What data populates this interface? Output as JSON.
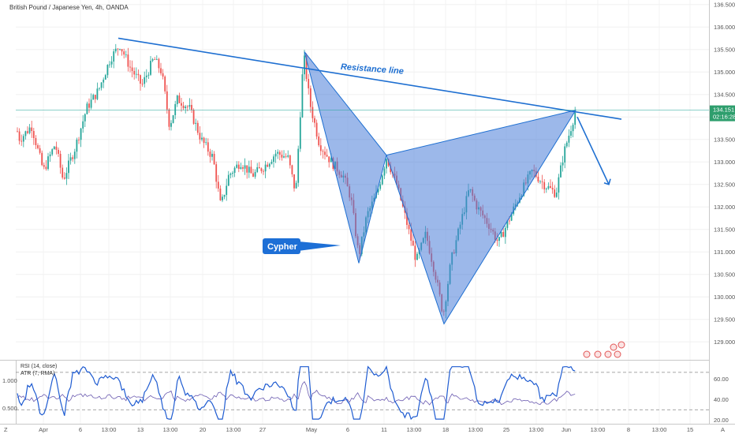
{
  "header": {
    "symbol_title": "British Pound / Japanese Yen, 4h, OANDA"
  },
  "colors": {
    "up": "#26a69a",
    "down": "#ef5350",
    "trendline": "#1e6fd1",
    "pattern_fill": "#4a7ed9",
    "rsi": "#1e5bd1",
    "atr": "#6b5bb0",
    "price_label_bg": "#2e9e6d",
    "annotation_bg": "#1d6fd6"
  },
  "annotations": {
    "resistance_label": "Resistance line",
    "pattern_label": "Cypher"
  },
  "price_axis": {
    "current_price": "134.151",
    "countdown": "02:16:28"
  },
  "indicators": {
    "rsi_label": "RSI (14, close)",
    "atr_label": "ATR (7, RMA)",
    "left_scale": [
      "1.000",
      "0.500"
    ],
    "right_scale": [
      "60.00",
      "40.00",
      "20.00"
    ]
  },
  "corner_labels": {
    "bottom_left": "Z",
    "bottom_right": "A"
  },
  "chart_data": {
    "type": "candlestick",
    "title": "British Pound / Japanese Yen, 4h, OANDA",
    "ylim": [
      128.6,
      136.6
    ],
    "y_ticks": [
      "136.500",
      "136.000",
      "135.500",
      "135.000",
      "134.500",
      "134.000",
      "133.500",
      "133.000",
      "132.500",
      "132.000",
      "131.500",
      "131.000",
      "130.500",
      "130.000",
      "129.500",
      "129.000"
    ],
    "x_ticks": [
      "Apr",
      "6",
      "13:00",
      "13",
      "13:00",
      "20",
      "13:00",
      "27",
      "May",
      "6",
      "11",
      "13:00",
      "18",
      "13:00",
      "25",
      "13:00",
      "Jun",
      "13:00",
      "8",
      "13:00",
      "15"
    ],
    "price_path": [
      [
        0,
        133.4
      ],
      [
        15,
        134.1
      ],
      [
        25,
        133.5
      ],
      [
        40,
        133.8
      ],
      [
        55,
        132.8
      ],
      [
        70,
        133.4
      ],
      [
        80,
        132.6
      ],
      [
        95,
        133.3
      ],
      [
        110,
        134.2
      ],
      [
        125,
        134.6
      ],
      [
        140,
        135.3
      ],
      [
        152,
        135.6
      ],
      [
        165,
        135.1
      ],
      [
        180,
        134.7
      ],
      [
        195,
        135.3
      ],
      [
        205,
        135.0
      ],
      [
        215,
        133.8
      ],
      [
        225,
        134.4
      ],
      [
        240,
        134.2
      ],
      [
        255,
        133.5
      ],
      [
        270,
        133.1
      ],
      [
        280,
        132.0
      ],
      [
        290,
        132.7
      ],
      [
        305,
        133.0
      ],
      [
        320,
        132.7
      ],
      [
        335,
        132.9
      ],
      [
        350,
        133.2
      ],
      [
        365,
        133.1
      ],
      [
        375,
        132.3
      ],
      [
        385,
        135.4
      ],
      [
        393,
        134.3
      ],
      [
        405,
        133.4
      ],
      [
        420,
        133.0
      ],
      [
        435,
        132.7
      ],
      [
        445,
        132.2
      ],
      [
        455,
        130.9
      ],
      [
        465,
        131.8
      ],
      [
        478,
        132.3
      ],
      [
        490,
        133.1
      ],
      [
        503,
        132.5
      ],
      [
        515,
        131.7
      ],
      [
        528,
        130.8
      ],
      [
        540,
        131.4
      ],
      [
        552,
        130.5
      ],
      [
        562,
        129.6
      ],
      [
        572,
        130.8
      ],
      [
        585,
        131.7
      ],
      [
        595,
        132.4
      ],
      [
        605,
        132.0
      ],
      [
        620,
        131.6
      ],
      [
        632,
        131.2
      ],
      [
        645,
        131.7
      ],
      [
        660,
        132.3
      ],
      [
        675,
        132.8
      ],
      [
        690,
        132.5
      ],
      [
        705,
        132.3
      ],
      [
        715,
        133.2
      ],
      [
        723,
        133.7
      ],
      [
        730,
        134.15
      ]
    ],
    "resistance_line": {
      "from": [
        150,
        135.75
      ],
      "to": [
        788,
        133.95
      ]
    },
    "cypher_points": {
      "X": [
        386,
        135.45
      ],
      "A": [
        455,
        130.75
      ],
      "B": [
        490,
        133.15
      ],
      "C": [
        563,
        129.4
      ],
      "D": [
        730,
        134.15
      ]
    },
    "projection_arrow": {
      "from": [
        732,
        134.0
      ],
      "to": [
        772,
        132.5
      ]
    },
    "rsi": {
      "name": "RSI (14, close)",
      "ylim": [
        15,
        80
      ],
      "levels": [
        70,
        30
      ]
    },
    "atr": {
      "name": "ATR (7, RMA)"
    }
  }
}
